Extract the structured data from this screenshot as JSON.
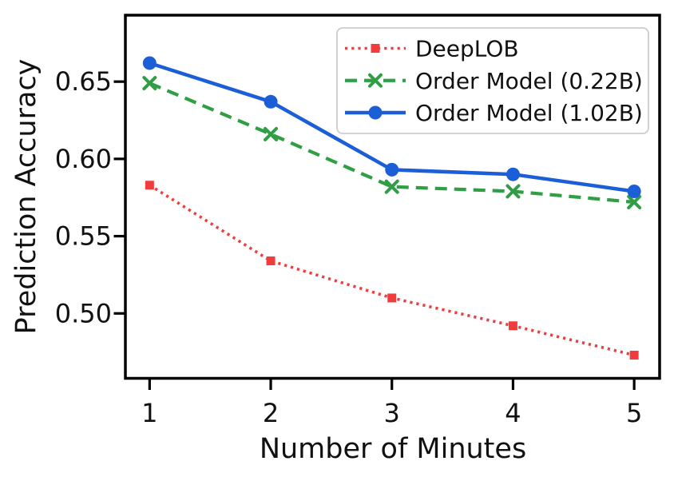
{
  "figure": {
    "background": "#ffffff",
    "text_color": "#111111"
  },
  "chart_data": {
    "type": "line",
    "title": "",
    "xlabel": "Number of Minutes",
    "ylabel": "Prediction Accuracy",
    "x": [
      1,
      2,
      3,
      4,
      5
    ],
    "series": [
      {
        "name": "DeepLOB",
        "values": [
          0.583,
          0.534,
          0.51,
          0.492,
          0.473
        ],
        "color": "#f23c3c",
        "line_style": "dotted",
        "marker": "square"
      },
      {
        "name": "Order Model (0.22B)",
        "values": [
          0.649,
          0.616,
          0.582,
          0.579,
          0.572
        ],
        "color": "#2f9e44",
        "line_style": "dashed",
        "marker": "x"
      },
      {
        "name": "Order Model (1.02B)",
        "values": [
          0.662,
          0.637,
          0.593,
          0.59,
          0.579
        ],
        "color": "#1b5ed8",
        "line_style": "solid",
        "marker": "circle"
      }
    ],
    "xticks": [
      1,
      2,
      3,
      4,
      5
    ],
    "yticks": [
      0.5,
      0.55,
      0.6,
      0.65
    ],
    "xlim": [
      0.8,
      5.21
    ],
    "ylim": [
      0.458,
      0.693
    ],
    "grid": false,
    "legend": {
      "position": "upper right",
      "border_color": "#cccccc",
      "background": "#ffffff"
    },
    "spine_color": "#000000"
  }
}
